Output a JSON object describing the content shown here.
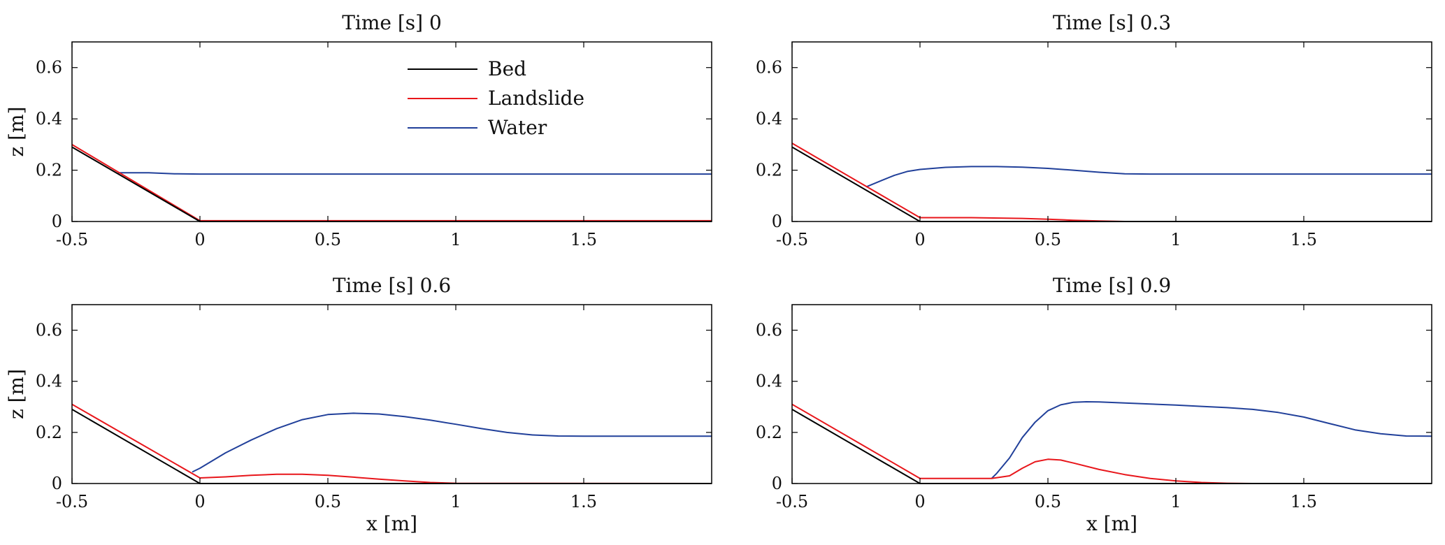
{
  "figure": {
    "xlabel": "x [m]",
    "ylabel": "z [m]"
  },
  "colors": {
    "Bed": "#000000",
    "Landslide": "#e8161b",
    "Water": "#21409a"
  },
  "legend": {
    "placement": "top-center of first panel",
    "entries": [
      {
        "name": "Bed",
        "color": "#000000"
      },
      {
        "name": "Landslide",
        "color": "#e8161b"
      },
      {
        "name": "Water",
        "color": "#21409a"
      }
    ]
  },
  "chart_data": [
    {
      "type": "line",
      "title": "Time [s] 0",
      "ylabel": "z [m]",
      "xlabel": "",
      "xlim": [
        -0.5,
        2.0
      ],
      "ylim": [
        0,
        0.7
      ],
      "xticks": [
        -0.5,
        0,
        0.5,
        1,
        1.5
      ],
      "xtick_labels": [
        "-0.5",
        "0",
        "0.5",
        "1",
        "1.5"
      ],
      "yticks": [
        0,
        0.2,
        0.4,
        0.6
      ],
      "ytick_labels": [
        "0",
        "0.2",
        "0.4",
        "0.6"
      ],
      "series": [
        {
          "name": "Bed",
          "color": "#000000",
          "x": [
            -0.5,
            0,
            2.0
          ],
          "y": [
            0.29,
            0.0,
            0.0
          ]
        },
        {
          "name": "Landslide",
          "color": "#e8161b",
          "x": [
            -0.5,
            0,
            2.0
          ],
          "y": [
            0.3,
            0.003,
            0.003
          ]
        },
        {
          "name": "Water",
          "color": "#21409a",
          "x": [
            -0.32,
            -0.28,
            -0.2,
            -0.1,
            0,
            0.5,
            1.0,
            1.5,
            2.0
          ],
          "y": [
            0.19,
            0.19,
            0.19,
            0.186,
            0.185,
            0.185,
            0.185,
            0.185,
            0.185
          ]
        }
      ]
    },
    {
      "type": "line",
      "title": "Time [s] 0.3",
      "ylabel": "",
      "xlabel": "",
      "xlim": [
        -0.5,
        2.0
      ],
      "ylim": [
        0,
        0.7
      ],
      "xticks": [
        -0.5,
        0,
        0.5,
        1,
        1.5
      ],
      "xtick_labels": [
        "-0.5",
        "0",
        "0.5",
        "1",
        "1.5"
      ],
      "yticks": [
        0,
        0.2,
        0.4,
        0.6
      ],
      "ytick_labels": [
        "0",
        "0.2",
        "0.4",
        "0.6"
      ],
      "series": [
        {
          "name": "Bed",
          "color": "#000000",
          "x": [
            -0.5,
            0,
            2.0
          ],
          "y": [
            0.29,
            0.0,
            0.0
          ]
        },
        {
          "name": "Landslide",
          "color": "#e8161b",
          "x": [
            -0.5,
            0,
            0.2,
            0.4,
            0.5,
            0.6,
            0.7,
            0.8,
            2.0
          ],
          "y": [
            0.305,
            0.015,
            0.015,
            0.012,
            0.009,
            0.005,
            0.002,
            0.0,
            0.0
          ]
        },
        {
          "name": "Water",
          "color": "#21409a",
          "x": [
            -0.21,
            -0.15,
            -0.1,
            -0.05,
            0,
            0.1,
            0.2,
            0.3,
            0.4,
            0.5,
            0.6,
            0.7,
            0.8,
            0.9,
            1.0,
            1.5,
            2.0
          ],
          "y": [
            0.135,
            0.16,
            0.18,
            0.195,
            0.203,
            0.211,
            0.214,
            0.214,
            0.212,
            0.207,
            0.2,
            0.192,
            0.186,
            0.185,
            0.185,
            0.185,
            0.185
          ]
        }
      ]
    },
    {
      "type": "line",
      "title": "Time [s] 0.6",
      "ylabel": "z [m]",
      "xlabel": "x [m]",
      "xlim": [
        -0.5,
        2.0
      ],
      "ylim": [
        0,
        0.7
      ],
      "xticks": [
        -0.5,
        0,
        0.5,
        1,
        1.5
      ],
      "xtick_labels": [
        "-0.5",
        "0",
        "0.5",
        "1",
        "1.5"
      ],
      "yticks": [
        0,
        0.2,
        0.4,
        0.6
      ],
      "ytick_labels": [
        "0",
        "0.2",
        "0.4",
        "0.6"
      ],
      "series": [
        {
          "name": "Bed",
          "color": "#000000",
          "x": [
            -0.5,
            0,
            2.0
          ],
          "y": [
            0.29,
            0.0,
            0.0
          ]
        },
        {
          "name": "Landslide",
          "color": "#e8161b",
          "x": [
            -0.5,
            0,
            0.1,
            0.2,
            0.3,
            0.4,
            0.5,
            0.6,
            0.7,
            0.8,
            0.9,
            1.0,
            2.0
          ],
          "y": [
            0.31,
            0.022,
            0.026,
            0.032,
            0.036,
            0.036,
            0.032,
            0.025,
            0.017,
            0.01,
            0.004,
            0.001,
            0.0
          ]
        },
        {
          "name": "Water",
          "color": "#21409a",
          "x": [
            -0.03,
            0,
            0.05,
            0.1,
            0.2,
            0.3,
            0.4,
            0.5,
            0.6,
            0.7,
            0.8,
            0.9,
            1.0,
            1.1,
            1.2,
            1.3,
            1.4,
            1.5,
            1.6,
            1.8,
            2.0
          ],
          "y": [
            0.045,
            0.06,
            0.09,
            0.12,
            0.17,
            0.215,
            0.25,
            0.27,
            0.275,
            0.272,
            0.262,
            0.248,
            0.232,
            0.215,
            0.2,
            0.19,
            0.186,
            0.185,
            0.185,
            0.185,
            0.185
          ]
        }
      ]
    },
    {
      "type": "line",
      "title": "Time [s] 0.9",
      "ylabel": "",
      "xlabel": "x [m]",
      "xlim": [
        -0.5,
        2.0
      ],
      "ylim": [
        0,
        0.7
      ],
      "xticks": [
        -0.5,
        0,
        0.5,
        1,
        1.5
      ],
      "xtick_labels": [
        "-0.5",
        "0",
        "0.5",
        "1",
        "1.5"
      ],
      "yticks": [
        0,
        0.2,
        0.4,
        0.6
      ],
      "ytick_labels": [
        "0",
        "0.2",
        "0.4",
        "0.6"
      ],
      "series": [
        {
          "name": "Bed",
          "color": "#000000",
          "x": [
            -0.5,
            0,
            2.0
          ],
          "y": [
            0.29,
            0.0,
            0.0
          ]
        },
        {
          "name": "Landslide",
          "color": "#e8161b",
          "x": [
            -0.5,
            0,
            0.28,
            0.35,
            0.4,
            0.45,
            0.5,
            0.55,
            0.6,
            0.7,
            0.8,
            0.9,
            1.0,
            1.1,
            1.2,
            1.3,
            2.0
          ],
          "y": [
            0.31,
            0.02,
            0.02,
            0.03,
            0.06,
            0.085,
            0.095,
            0.092,
            0.08,
            0.055,
            0.035,
            0.02,
            0.01,
            0.004,
            0.001,
            0.0,
            0.0
          ]
        },
        {
          "name": "Water",
          "color": "#21409a",
          "x": [
            0.28,
            0.3,
            0.35,
            0.4,
            0.45,
            0.5,
            0.55,
            0.6,
            0.65,
            0.7,
            0.8,
            0.9,
            1.0,
            1.1,
            1.2,
            1.3,
            1.4,
            1.5,
            1.6,
            1.7,
            1.8,
            1.9,
            2.0
          ],
          "y": [
            0.02,
            0.04,
            0.1,
            0.18,
            0.24,
            0.285,
            0.308,
            0.318,
            0.32,
            0.319,
            0.315,
            0.311,
            0.307,
            0.302,
            0.297,
            0.29,
            0.278,
            0.26,
            0.235,
            0.21,
            0.195,
            0.186,
            0.185
          ]
        }
      ]
    }
  ]
}
